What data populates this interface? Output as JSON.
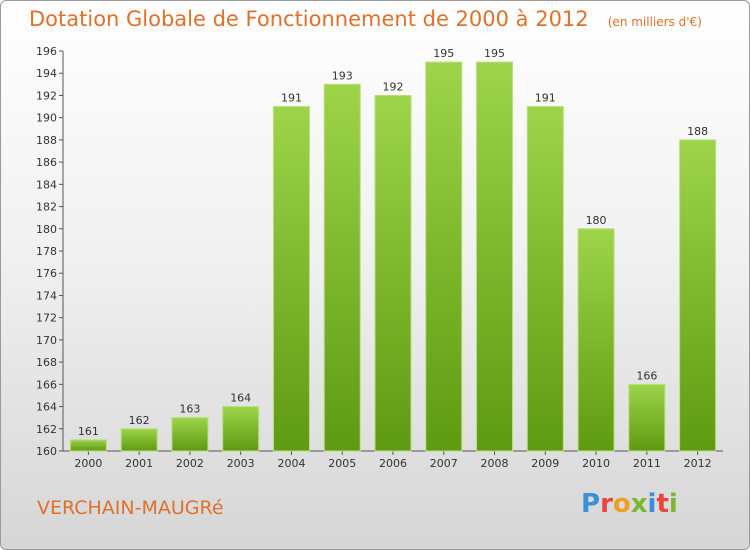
{
  "header": {
    "title": "Dotation Globale de Fonctionnement de 2000 à 2012",
    "unit": "(en milliers d'€)"
  },
  "footer": {
    "location": "VERCHAIN-MAUGRé",
    "brand": "Proxiti",
    "brand_colors": [
      "#3a8fd8",
      "#e8453c",
      "#f0a020",
      "#7ab830",
      "#3a8fd8",
      "#e8453c",
      "#7ab830"
    ]
  },
  "colors": {
    "bar_top": "#9dd44a",
    "bar_bottom": "#5e9a12",
    "title": "#e0702a"
  },
  "chart_data": {
    "type": "bar",
    "title": "Dotation Globale de Fonctionnement de 2000 à 2012",
    "subtitle": "(en milliers d'€)",
    "xlabel": "",
    "ylabel": "",
    "categories": [
      "2000",
      "2001",
      "2002",
      "2003",
      "2004",
      "2005",
      "2006",
      "2007",
      "2008",
      "2009",
      "2010",
      "2011",
      "2012"
    ],
    "values": [
      161,
      162,
      163,
      164,
      191,
      193,
      192,
      195,
      195,
      191,
      180,
      166,
      188
    ],
    "ylim": [
      160,
      196
    ],
    "yticks": [
      "160",
      "162",
      "164",
      "166",
      "168",
      "170",
      "172",
      "174",
      "176",
      "178",
      "180",
      "182",
      "184",
      "186",
      "188",
      "190",
      "192",
      "194",
      "196"
    ],
    "grid": false,
    "legend": "none"
  }
}
